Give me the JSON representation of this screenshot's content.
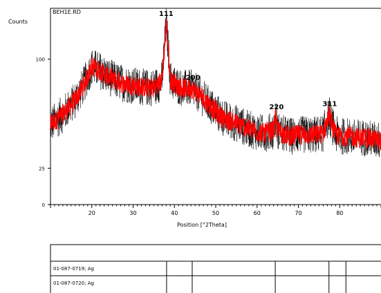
{
  "chart_data": {
    "type": "line",
    "title": "",
    "sample_label": "BEH1E.RD",
    "ylabel": "Counts",
    "xlabel": "Position [°2Theta]",
    "xlim": [
      10,
      92
    ],
    "ylim": [
      0,
      135
    ],
    "x_ticks": [
      20,
      30,
      40,
      50,
      60,
      70,
      80
    ],
    "y_ticks": [
      0,
      25,
      100
    ],
    "y_tick_labels": [
      "0",
      "25",
      "100"
    ],
    "grid": false,
    "series": [
      {
        "color": "#ff0000",
        "noise_color": "#000000",
        "x": [
          10,
          13,
          16,
          18,
          20,
          22,
          24,
          26,
          28,
          30,
          32,
          34,
          36,
          37,
          38,
          38.5,
          39,
          40,
          42,
          44,
          46,
          48,
          50,
          52,
          55,
          58,
          60,
          62,
          64,
          64.5,
          65,
          66,
          68,
          70,
          72,
          74,
          76,
          77,
          77.5,
          78,
          79,
          80,
          82,
          84,
          86,
          88,
          90,
          92
        ],
        "y": [
          55,
          62,
          72,
          82,
          95,
          92,
          88,
          85,
          83,
          82,
          81,
          80,
          82,
          86,
          124,
          108,
          86,
          83,
          80,
          80,
          76,
          70,
          64,
          59,
          56,
          52,
          50,
          49,
          51,
          60,
          51,
          49,
          47,
          48,
          48,
          48,
          49,
          58,
          62,
          56,
          48,
          47,
          47,
          46,
          46,
          45,
          44,
          44
        ]
      }
    ],
    "annotations": [
      {
        "text": "111",
        "x": 38.0
      },
      {
        "text": "200",
        "x": 44.5
      },
      {
        "text": "220",
        "x": 64.7
      },
      {
        "text": "311",
        "x": 77.6
      }
    ]
  },
  "reference_table": {
    "rows": [
      "01-087-0719; Ag",
      "01-087-0720; Ag"
    ],
    "lines": [
      38.1,
      44.3,
      64.4,
      77.4,
      81.5
    ]
  }
}
